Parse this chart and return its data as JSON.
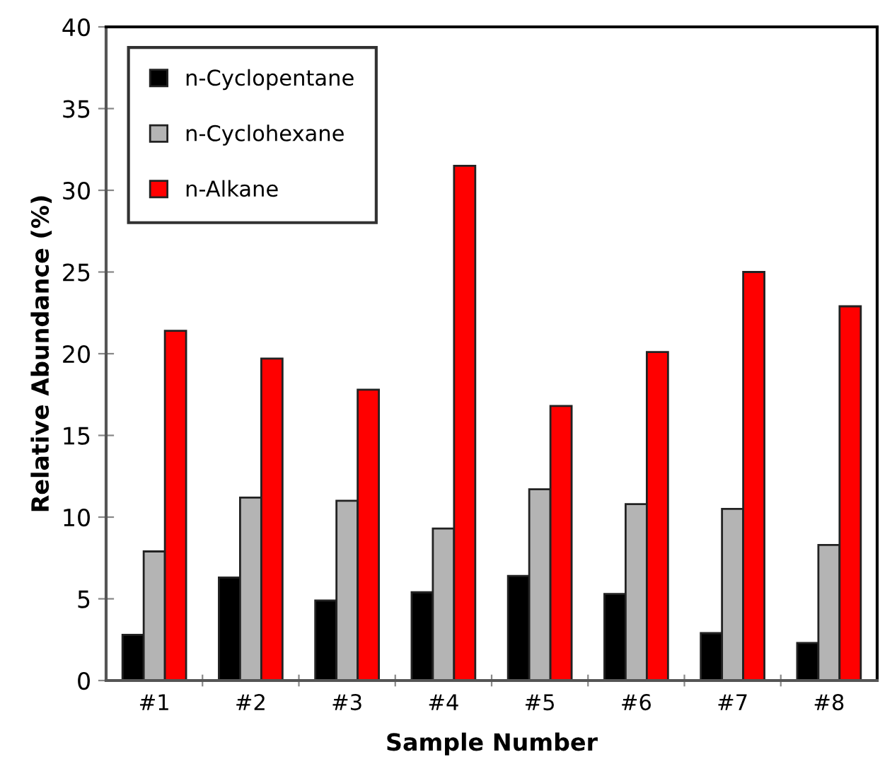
{
  "chart_data": {
    "type": "bar",
    "xlabel": "Sample Number",
    "ylabel": "Relative Abundance (%)",
    "categories": [
      "#1",
      "#2",
      "#3",
      "#4",
      "#5",
      "#6",
      "#7",
      "#8"
    ],
    "series": [
      {
        "name": "n-Cyclopentane",
        "color": "#000000",
        "values": [
          2.8,
          6.3,
          4.9,
          5.4,
          6.4,
          5.3,
          2.9,
          2.3
        ]
      },
      {
        "name": "n-Cyclohexane",
        "color": "#b4b4b4",
        "values": [
          7.9,
          11.2,
          11.0,
          9.3,
          11.7,
          10.8,
          10.5,
          8.3
        ]
      },
      {
        "name": "n-Alkane",
        "color": "#ff0000",
        "values": [
          21.4,
          19.7,
          17.8,
          31.5,
          16.8,
          20.1,
          25.0,
          22.9
        ]
      }
    ],
    "ylim": [
      0,
      40
    ],
    "yticks": [
      0,
      5,
      10,
      15,
      20,
      25,
      30,
      35,
      40
    ],
    "grid": false,
    "legend": "top left"
  }
}
